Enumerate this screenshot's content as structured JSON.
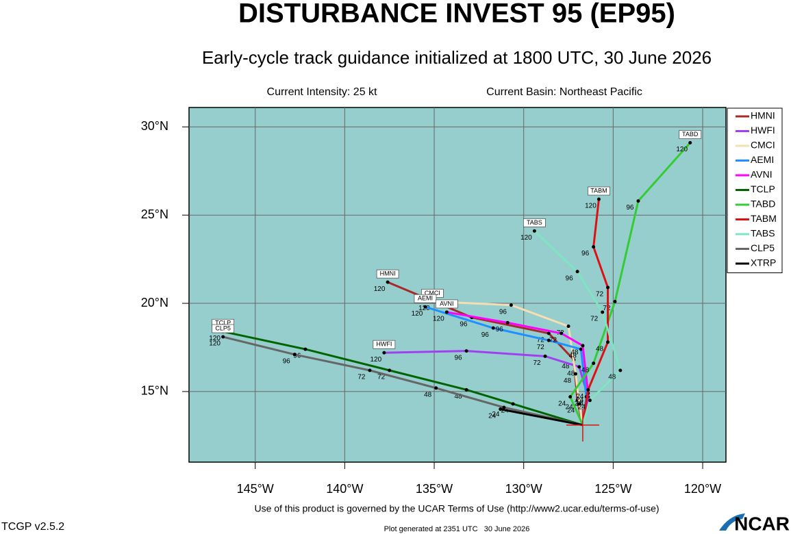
{
  "chart_data": {
    "type": "track",
    "title": "DISTURBANCE INVEST 95 (EP95)",
    "subtitle": "Early-cycle track guidance initialized at 1800 UTC, 30 June 2026",
    "intensity": "Current Intensity: 25 kt",
    "basin": "Current Basin: Northeast Pacific",
    "xlim": [
      -148.7,
      -118.7
    ],
    "ylim": [
      11.0,
      31.1
    ],
    "xticks": [
      {
        "value": -145,
        "label": "145°W"
      },
      {
        "value": -140,
        "label": "140°W"
      },
      {
        "value": -135,
        "label": "135°W"
      },
      {
        "value": -130,
        "label": "130°W"
      },
      {
        "value": -125,
        "label": "125°W"
      },
      {
        "value": -120,
        "label": "120°W"
      }
    ],
    "yticks": [
      {
        "value": 15,
        "label": "15°N"
      },
      {
        "value": 20,
        "label": "20°N"
      },
      {
        "value": 25,
        "label": "25°N"
      },
      {
        "value": 30,
        "label": "30°N"
      }
    ],
    "grid": true,
    "legend": "right",
    "current_position": {
      "x": -126.7,
      "y": 13.1,
      "color": "#dd1111"
    },
    "series": [
      {
        "name": "HMNI",
        "color": "#a52a2a",
        "tag": true,
        "x": [
          -126.7,
          -127.0,
          -127.2,
          -128.6,
          -132.9,
          -137.6
        ],
        "y": [
          13.1,
          14.5,
          16.8,
          18.3,
          19.2,
          21.2
        ],
        "point_labels": [
          null,
          "24",
          "48",
          "72",
          "96",
          "120"
        ]
      },
      {
        "name": "HWFI",
        "color": "#a040f0",
        "tag": true,
        "x": [
          -126.7,
          -126.4,
          -126.9,
          -128.8,
          -133.2,
          -137.8
        ],
        "y": [
          13.1,
          14.7,
          16.4,
          17.0,
          17.3,
          17.2
        ],
        "point_labels": [
          null,
          "24",
          "48",
          "72",
          "96",
          "120"
        ]
      },
      {
        "name": "CMCI",
        "color": "#f5deb3",
        "tag": true,
        "x": [
          -126.7,
          -126.9,
          -127.1,
          -127.5,
          -130.7,
          -135.1
        ],
        "y": [
          13.1,
          14.3,
          16.0,
          18.7,
          19.9,
          20.1
        ],
        "point_labels": [
          null,
          "24",
          "48",
          "72",
          "96",
          "120"
        ]
      },
      {
        "name": "AEMI",
        "color": "#1e90ff",
        "tag": true,
        "x": [
          -126.7,
          -126.5,
          -126.8,
          -128.6,
          -131.7,
          -135.5
        ],
        "y": [
          13.1,
          14.7,
          17.4,
          17.9,
          18.6,
          19.8
        ],
        "point_labels": [
          null,
          "24",
          "48",
          "72",
          "96",
          "120"
        ]
      },
      {
        "name": "AVNI",
        "color": "#ff00ff",
        "tag": true,
        "x": [
          -126.7,
          -126.4,
          -126.7,
          -127.9,
          -130.9,
          -134.3
        ],
        "y": [
          13.1,
          14.9,
          17.6,
          18.3,
          18.9,
          19.5
        ],
        "point_labels": [
          null,
          "24",
          "48",
          "72",
          "96",
          "120"
        ]
      },
      {
        "name": "TCLP",
        "color": "#006400",
        "tag": true,
        "x": [
          -126.7,
          -130.6,
          -133.2,
          -137.5,
          -142.2,
          -146.8
        ],
        "y": [
          13.1,
          14.3,
          15.1,
          16.2,
          17.4,
          18.4
        ],
        "point_labels": [
          null,
          "24",
          "48",
          "72",
          "96",
          "120"
        ]
      },
      {
        "name": "TABD",
        "color": "#33cc33",
        "tag": true,
        "x": [
          -126.7,
          -127.4,
          -126.1,
          -124.9,
          -123.6,
          -120.7
        ],
        "y": [
          13.1,
          14.7,
          16.6,
          20.1,
          25.8,
          29.1
        ],
        "point_labels": [
          null,
          "24",
          "48",
          "72",
          "96",
          "120"
        ]
      },
      {
        "name": "TABM",
        "color": "#dd1111",
        "tag": true,
        "x": [
          -126.7,
          -126.4,
          -125.3,
          -125.3,
          -126.1,
          -125.8
        ],
        "y": [
          13.1,
          15.1,
          17.8,
          20.9,
          23.2,
          25.9
        ],
        "point_labels": [
          null,
          "24",
          "48",
          "72",
          "96",
          "120"
        ]
      },
      {
        "name": "TABS",
        "color": "#7fe5c0",
        "tag": true,
        "x": [
          -126.7,
          -126.3,
          -124.6,
          -125.6,
          -127.0,
          -129.4
        ],
        "y": [
          13.1,
          14.5,
          16.2,
          19.5,
          21.8,
          24.1
        ],
        "point_labels": [
          null,
          "24",
          "48",
          "72",
          "96",
          "120"
        ]
      },
      {
        "name": "CLP5",
        "color": "#666666",
        "tag": true,
        "x": [
          -126.7,
          -131.1,
          -134.9,
          -138.6,
          -142.8,
          -146.8
        ],
        "y": [
          13.1,
          14.1,
          15.2,
          16.2,
          17.1,
          18.1
        ],
        "point_labels": [
          null,
          "24",
          "48",
          "72",
          "96",
          "120"
        ]
      },
      {
        "name": "XTRP",
        "color": "#000000",
        "tag": false,
        "x": [
          -126.7,
          -131.3
        ],
        "y": [
          13.1,
          14.0
        ],
        "point_labels": [
          null,
          "24"
        ]
      }
    ],
    "terms": "Use of this product is governed by the UCAR Terms of Use (http://www2.ucar.edu/terms-of-use)",
    "version": "TCGP v2.5.2",
    "generated": "Plot generated at 2351 UTC   30 June 2026",
    "logo": "NCAR"
  }
}
